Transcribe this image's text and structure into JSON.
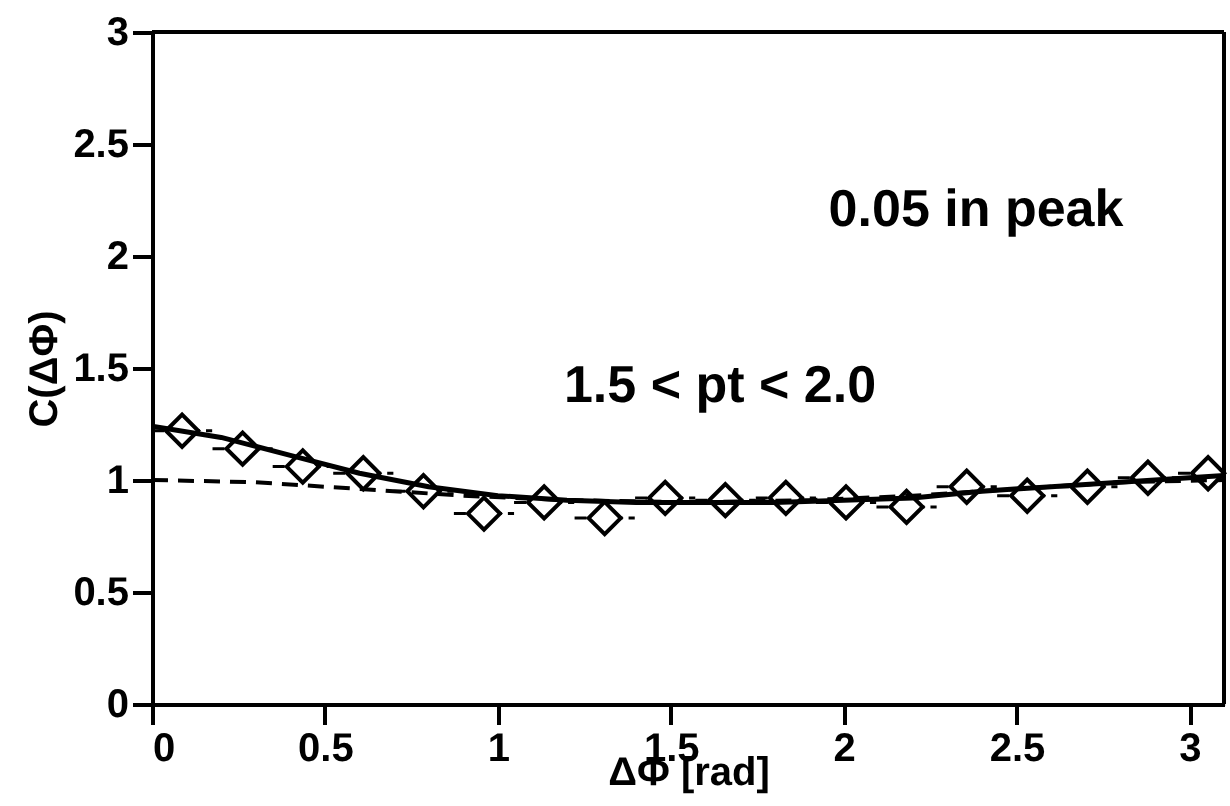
{
  "chart_data": {
    "type": "scatter",
    "xlabel": "ΔΦ [rad]",
    "ylabel": "C(ΔΦ)",
    "annotations": [
      "0.05 in peak",
      "1.5 < pt < 2.0"
    ],
    "xlim": [
      0,
      3.1
    ],
    "ylim": [
      0,
      3
    ],
    "xticks": [
      0,
      0.5,
      1,
      1.5,
      2,
      2.5,
      3
    ],
    "yticks": [
      0,
      0.5,
      1,
      1.5,
      2,
      2.5,
      3
    ],
    "grid": false,
    "series": [
      {
        "marker": "diamond",
        "color": "#000000",
        "x": [
          0.087,
          0.262,
          0.436,
          0.611,
          0.785,
          0.96,
          1.134,
          1.309,
          1.484,
          1.658,
          1.833,
          2.007,
          2.182,
          2.356,
          2.531,
          2.705,
          2.88,
          3.054
        ],
        "values": [
          1.22,
          1.14,
          1.06,
          1.03,
          0.95,
          0.85,
          0.9,
          0.83,
          0.92,
          0.91,
          0.92,
          0.9,
          0.88,
          0.97,
          0.93,
          0.97,
          1.01,
          1.03
        ],
        "xerrors": [
          0.087,
          0.087,
          0.087,
          0.087,
          0.087,
          0.087,
          0.087,
          0.087,
          0.087,
          0.087,
          0.087,
          0.087,
          0.087,
          0.087,
          0.087,
          0.087,
          0.087,
          0.087
        ]
      },
      {
        "type": "line",
        "line_style": "solid",
        "color": "#000000",
        "x": [
          0,
          0.2,
          0.4,
          0.6,
          0.8,
          1.0,
          1.2,
          1.4,
          1.6,
          1.8,
          2.0,
          2.2,
          2.4,
          2.6,
          2.8,
          3.0,
          3.1
        ],
        "values": [
          1.24,
          1.19,
          1.11,
          1.03,
          0.97,
          0.93,
          0.91,
          0.9,
          0.9,
          0.9,
          0.91,
          0.92,
          0.95,
          0.97,
          0.99,
          1.01,
          1.02
        ]
      },
      {
        "type": "line",
        "line_style": "dashed",
        "color": "#000000",
        "x": [
          0,
          0.3,
          0.6,
          0.9,
          1.2,
          1.57,
          1.9,
          2.2,
          2.5,
          2.8,
          3.1
        ],
        "values": [
          1.0,
          0.99,
          0.96,
          0.93,
          0.91,
          0.9,
          0.91,
          0.93,
          0.96,
          0.99,
          1.0
        ]
      }
    ]
  }
}
